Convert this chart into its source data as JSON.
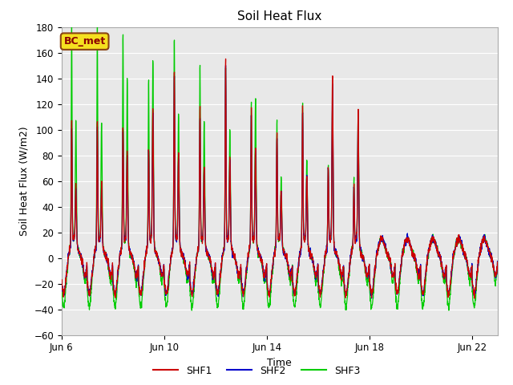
{
  "title": "Soil Heat Flux",
  "xlabel": "Time",
  "ylabel": "Soil Heat Flux (W/m2)",
  "ylim": [
    -60,
    180
  ],
  "yticks": [
    -60,
    -40,
    -20,
    0,
    20,
    40,
    60,
    80,
    100,
    120,
    140,
    160,
    180
  ],
  "xtick_labels": [
    "Jun 6",
    "Jun 10",
    "Jun 14",
    "Jun 18",
    "Jun 22"
  ],
  "xtick_positions": [
    0,
    4,
    8,
    12,
    16
  ],
  "legend_label": "BC_met",
  "series_labels": [
    "SHF1",
    "SHF2",
    "SHF3"
  ],
  "series_colors": [
    "#cc0000",
    "#0000cc",
    "#00cc00"
  ],
  "background_color": "#e8e8e8",
  "fig_background": "#ffffff",
  "n_days": 17,
  "pts_per_day": 144,
  "shf3_peaks": [
    170,
    95,
    170,
    95,
    165,
    130,
    128,
    145,
    160,
    100,
    140,
    95,
    135,
    87,
    110,
    113,
    95,
    50,
    110,
    65,
    60,
    110,
    50,
    105
  ],
  "shf1_peaks": [
    95,
    45,
    95,
    45,
    90,
    70,
    75,
    105,
    135,
    70,
    105,
    60,
    145,
    65,
    105,
    75,
    85,
    40,
    110,
    55,
    60,
    130,
    45,
    105
  ],
  "shf2_peaks": [
    90,
    42,
    90,
    42,
    88,
    68,
    72,
    100,
    130,
    68,
    100,
    58,
    140,
    62,
    100,
    72,
    82,
    38,
    105,
    52,
    58,
    125,
    42,
    100
  ],
  "trough_shf3": -38,
  "trough_shf12": -28
}
